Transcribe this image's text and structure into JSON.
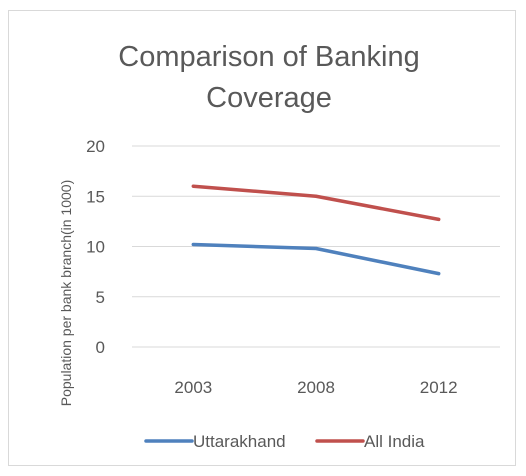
{
  "chart_data": {
    "type": "line",
    "title_lines": [
      "Comparison of Banking",
      "Coverage"
    ],
    "xlabel": "",
    "ylabel": "Population per bank branch(in 1000)",
    "categories": [
      "2003",
      "2008",
      "2012"
    ],
    "yticks": [
      "0",
      "5",
      "10",
      "15",
      "20"
    ],
    "ylim": [
      0,
      20
    ],
    "grid": true,
    "legend_position": "bottom",
    "series": [
      {
        "name": "Uttarakhand",
        "values": [
          10.2,
          9.8,
          7.3
        ],
        "color": "#4f81bd"
      },
      {
        "name": "All India",
        "values": [
          16.0,
          15.0,
          12.7
        ],
        "color": "#c0504d"
      }
    ]
  }
}
